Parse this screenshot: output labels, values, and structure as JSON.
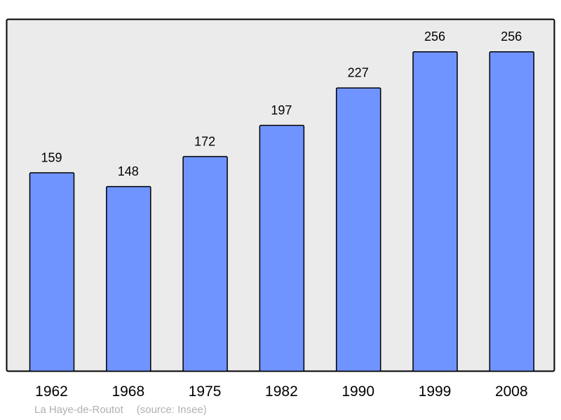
{
  "chart_data": {
    "type": "bar",
    "categories": [
      "1962",
      "1968",
      "1975",
      "1982",
      "1990",
      "1999",
      "2008"
    ],
    "values": [
      159,
      148,
      172,
      197,
      227,
      256,
      256
    ],
    "title": "",
    "xlabel": "",
    "ylabel": "",
    "ylim": [
      0,
      282
    ],
    "grid": false,
    "data_labels": true,
    "colors": {
      "bar": "#7094ff",
      "bar_stroke": "#000000",
      "plot_background": "#ebebeb",
      "frame": "#000000"
    }
  },
  "caption": {
    "place": "La Haye-de-Routot",
    "source": "(source: Insee)"
  }
}
